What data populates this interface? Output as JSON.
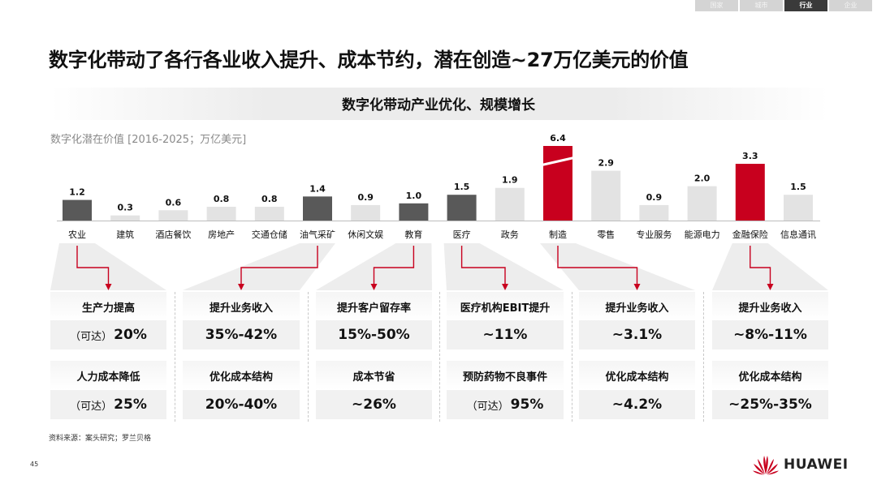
{
  "nav": {
    "tabs": [
      "国家",
      "城市",
      "行业",
      "企业"
    ],
    "active_index": 2
  },
  "title": "数字化带动了各行各业收入提升、成本节约，潜在创造~27万亿美元的价值",
  "subtitle": "数字化带动产业优化、规模增长",
  "chart_data": {
    "type": "bar",
    "unit_label": "数字化潜在价值 [2016-2025；万亿美元]",
    "categories": [
      "农业",
      "建筑",
      "酒店餐饮",
      "房地产",
      "交通仓储",
      "油气采矿",
      "休闲文娱",
      "教育",
      "医疗",
      "政务",
      "制造",
      "零售",
      "专业服务",
      "能源电力",
      "金融保险",
      "信息通讯"
    ],
    "values": [
      1.2,
      0.3,
      0.6,
      0.8,
      0.8,
      1.4,
      0.9,
      1.0,
      1.5,
      1.9,
      6.4,
      2.9,
      0.9,
      2.0,
      3.3,
      1.5
    ],
    "value_labels": [
      "1.2",
      "0.3",
      "0.6",
      "0.8",
      "0.8",
      "1.4",
      "0.9",
      "1.0",
      "1.5",
      "1.9",
      "6.4",
      "2.9",
      "0.9",
      "2.0",
      "3.3",
      "1.5"
    ],
    "highlight": [
      "dark",
      "light",
      "light",
      "light",
      "light",
      "dark",
      "light",
      "dark",
      "dark",
      "light",
      "red",
      "light",
      "light",
      "light",
      "red",
      "light"
    ],
    "broken_axis_category": "制造",
    "colors": {
      "dark": "#595959",
      "light": "#e3e3e3",
      "red": "#c8001e"
    }
  },
  "metric_groups": [
    {
      "from_category": 0,
      "row1_label": "生产力提高",
      "row1_value_prefix": "（可达）",
      "row1_value": "20%",
      "row2_label": "人力成本降低",
      "row2_value_prefix": "（可达）",
      "row2_value": "25%"
    },
    {
      "from_category": 5,
      "row1_label": "提升业务收入",
      "row1_value_prefix": "",
      "row1_value": "35%-42%",
      "row2_label": "优化成本结构",
      "row2_value_prefix": "",
      "row2_value": "20%-40%"
    },
    {
      "from_category": 7,
      "row1_label": "提升客户留存率",
      "row1_value_prefix": "",
      "row1_value": "15%-50%",
      "row2_label": "成本节省",
      "row2_value_prefix": "",
      "row2_value": "~26%"
    },
    {
      "from_category": 8,
      "row1_label": "医疗机构EBIT提升",
      "row1_value_prefix": "",
      "row1_value": "~11%",
      "row2_label": "预防药物不良事件",
      "row2_value_prefix": "（可达）",
      "row2_value": "95%"
    },
    {
      "from_category": 10,
      "row1_label": "提升业务收入",
      "row1_value_prefix": "",
      "row1_value": "~3.1%",
      "row2_label": "优化成本结构",
      "row2_value_prefix": "",
      "row2_value": "~4.2%"
    },
    {
      "from_category": 14,
      "row1_label": "提升业务收入",
      "row1_value_prefix": "",
      "row1_value": "~8%-11%",
      "row2_label": "优化成本结构",
      "row2_value_prefix": "",
      "row2_value": "~25%-35%"
    }
  ],
  "source": "资料来源：案头研究；罗兰贝格",
  "page_number": "45",
  "logo_text": "HUAWEI",
  "accent_color": "#c8001e"
}
